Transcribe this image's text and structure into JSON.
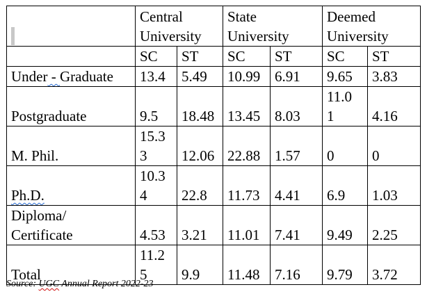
{
  "table": {
    "groups": [
      "Central\nUniversity",
      "State\nUniversity",
      "Deemed\nUniversity"
    ],
    "subheaders": [
      "SC",
      "ST",
      "SC",
      "ST",
      "SC",
      "ST"
    ],
    "rows": [
      {
        "label": "Under - Graduate",
        "values": [
          "13.4",
          "5.49",
          "10.99",
          "6.91",
          "9.65",
          "3.83"
        ]
      },
      {
        "label": "Postgraduate",
        "values": [
          "9.5",
          "18.48",
          "13.45",
          "8.03",
          "11.0\n1",
          "4.16"
        ]
      },
      {
        "label": "M. Phil.",
        "values": [
          "15.3\n3",
          "12.06",
          "22.88",
          "1.57",
          "0",
          "0"
        ]
      },
      {
        "label": "Ph.D.",
        "values": [
          "10.3\n4",
          "22.8",
          "11.73",
          "4.41",
          "6.9",
          "1.03"
        ]
      },
      {
        "label": "Diploma/\nCertificate",
        "values": [
          "4.53",
          "3.21",
          "11.01",
          "7.41",
          "9.49",
          "2.25"
        ]
      },
      {
        "label": "Total",
        "values": [
          "11.2\n5",
          "9.9",
          "11.48",
          "7.16",
          "9.79",
          "3.72"
        ]
      }
    ]
  },
  "source": {
    "prefix": "Source: ",
    "ugc": "UGC",
    "rest": " Annual Report 2022-23"
  }
}
